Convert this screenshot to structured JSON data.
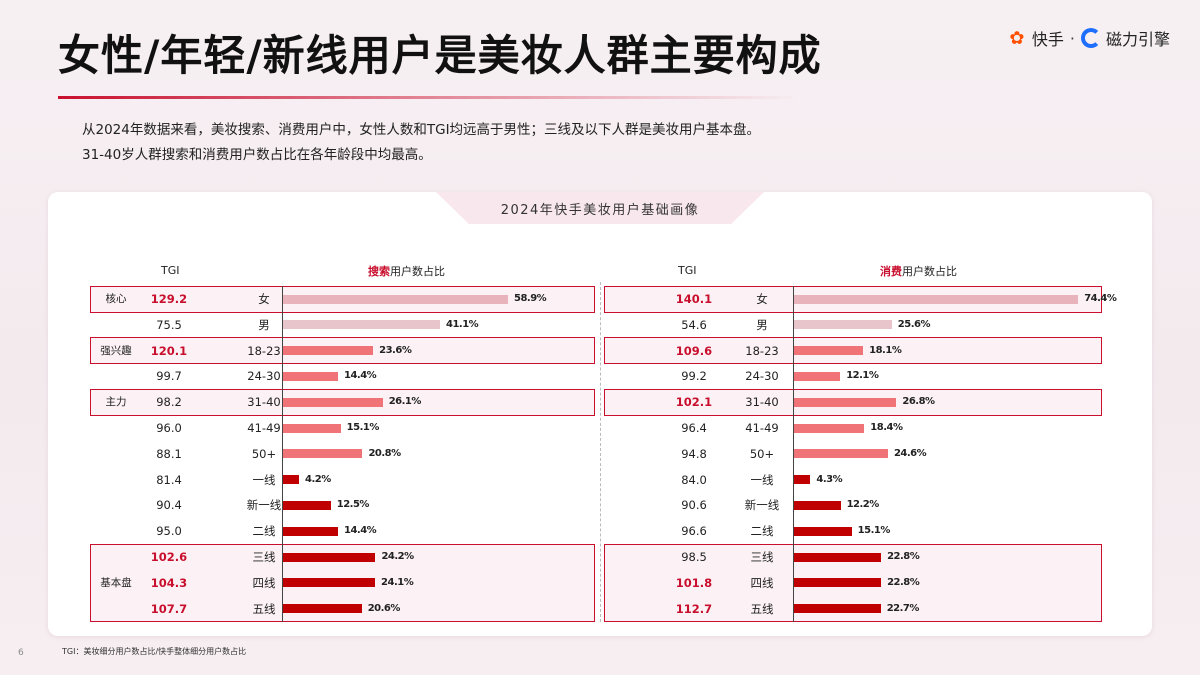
{
  "title": "女性/年轻/新线用户是美妆人群主要构成",
  "logo": {
    "kuaishou": "快手",
    "separator": "·",
    "cili": "磁力引擎"
  },
  "description": [
    "从2024年数据来看，美妆搜索、消费用户中，女性人数和TGI均远高于男性；三线及以下人群是美妆用户基本盘。",
    "31-40岁人群搜索和消费用户数占比在各年龄段中均最高。"
  ],
  "panel_title": "2024年快手美妆用户基础画像",
  "headers": {
    "tgi_left": "TGI",
    "search_red": "搜索",
    "search_rest": "用户数占比",
    "tgi_right": "TGI",
    "consume_red": "消费",
    "consume_rest": "用户数占比"
  },
  "groups": [
    {
      "label": "核心",
      "rows": [
        0
      ]
    },
    {
      "label": "强兴趣",
      "rows": [
        2
      ]
    },
    {
      "label": "主力",
      "rows": [
        4
      ]
    },
    {
      "label": "基本盘",
      "rows": [
        10,
        11,
        12
      ]
    }
  ],
  "chart_data": {
    "type": "bar",
    "orientation": "horizontal",
    "title": "2024年快手美妆用户基础画像",
    "categories": [
      "女",
      "男",
      "18-23",
      "24-30",
      "31-40",
      "41-49",
      "50+",
      "一线",
      "新一线",
      "二线",
      "三线",
      "四线",
      "五线"
    ],
    "series": [
      {
        "name": "搜索用户数占比",
        "values": [
          58.9,
          41.1,
          23.6,
          14.4,
          26.1,
          15.1,
          20.8,
          4.2,
          12.5,
          14.4,
          24.2,
          24.1,
          20.6
        ],
        "labels": [
          "58.9%",
          "41.1%",
          "23.6%",
          "14.4%",
          "26.1%",
          "15.1%",
          "20.8%",
          "4.2%",
          "12.5%",
          "14.4%",
          "24.2%",
          "24.1%",
          "20.6%"
        ],
        "tgi": [
          "129.2",
          "75.5",
          "120.1",
          "99.7",
          "98.2",
          "96.0",
          "88.1",
          "81.4",
          "90.4",
          "95.0",
          "102.6",
          "104.3",
          "107.7"
        ],
        "tgi_highlight": [
          true,
          false,
          true,
          false,
          false,
          false,
          false,
          false,
          false,
          false,
          true,
          true,
          true
        ]
      },
      {
        "name": "消费用户数占比",
        "values": [
          74.4,
          25.6,
          18.1,
          12.1,
          26.8,
          18.4,
          24.6,
          4.3,
          12.2,
          15.1,
          22.8,
          22.8,
          22.7
        ],
        "labels": [
          "74.4%",
          "25.6%",
          "18.1%",
          "12.1%",
          "26.8%",
          "18.4%",
          "24.6%",
          "4.3%",
          "12.2%",
          "15.1%",
          "22.8%",
          "22.8%",
          "22.7%"
        ],
        "tgi": [
          "140.1",
          "54.6",
          "109.6",
          "99.2",
          "102.1",
          "96.4",
          "94.8",
          "84.0",
          "90.6",
          "96.6",
          "98.5",
          "101.8",
          "112.7"
        ],
        "tgi_highlight": [
          true,
          false,
          true,
          false,
          true,
          false,
          false,
          false,
          false,
          false,
          false,
          true,
          true
        ]
      }
    ],
    "bar_colors": [
      "#e8b3bb",
      "#e8c5ca",
      "#f07477",
      "#f07477",
      "#f07477",
      "#f07477",
      "#f07477",
      "#c00000",
      "#c00000",
      "#c00000",
      "#c00000",
      "#c00000",
      "#c00000"
    ],
    "xlim": [
      0,
      80
    ]
  },
  "footnote": "TGI：美妆细分用户数占比/快手整体细分用户数占比",
  "page_number": "6"
}
